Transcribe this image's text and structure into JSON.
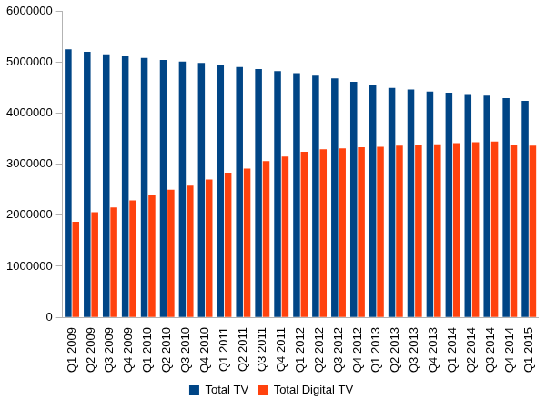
{
  "chart_data": {
    "type": "bar",
    "categories": [
      "Q1 2009",
      "Q2 2009",
      "Q3 2009",
      "Q4 2009",
      "Q1 2010",
      "Q2 2010",
      "Q3 2010",
      "Q4 2010",
      "Q1 2011",
      "Q2 2011",
      "Q3 2011",
      "Q4 2011",
      "Q1 2012",
      "Q2 2012",
      "Q3 2012",
      "Q4 2012",
      "Q1 2013",
      "Q2 2013",
      "Q3 2013",
      "Q4 2013",
      "Q1 2014",
      "Q2 2014",
      "Q3 2014",
      "Q4 2014",
      "Q1 2015"
    ],
    "series": [
      {
        "name": "Total TV",
        "color": "#004586",
        "values": [
          5250000,
          5200000,
          5150000,
          5110000,
          5080000,
          5040000,
          5010000,
          4980000,
          4940000,
          4900000,
          4860000,
          4820000,
          4780000,
          4730000,
          4680000,
          4610000,
          4550000,
          4490000,
          4460000,
          4420000,
          4400000,
          4370000,
          4340000,
          4290000,
          4240000
        ]
      },
      {
        "name": "Total Digital TV",
        "color": "#ff420e",
        "values": [
          1870000,
          2060000,
          2150000,
          2290000,
          2400000,
          2500000,
          2580000,
          2700000,
          2830000,
          2910000,
          3060000,
          3150000,
          3240000,
          3290000,
          3310000,
          3330000,
          3340000,
          3360000,
          3380000,
          3390000,
          3410000,
          3430000,
          3440000,
          3380000,
          3360000
        ]
      }
    ],
    "ylim": [
      0,
      6000000
    ],
    "yticks": [
      0,
      1000000,
      2000000,
      3000000,
      4000000,
      5000000,
      6000000
    ],
    "grid": false,
    "legend": "bottom"
  }
}
